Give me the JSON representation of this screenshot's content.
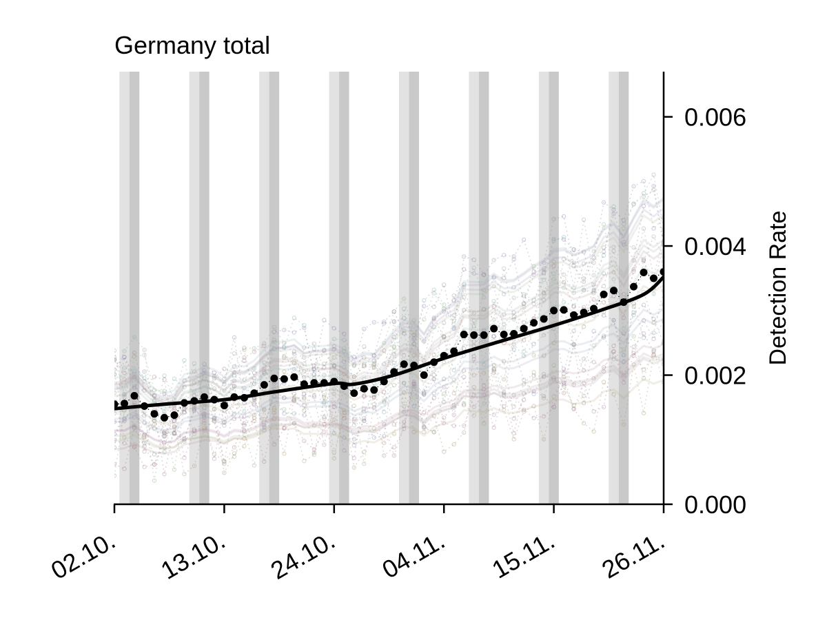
{
  "chart_data": {
    "type": "line",
    "title": "Germany total",
    "xlabel": "",
    "ylabel": "Detection Rate",
    "x_tick_labels": [
      "02.10.",
      "13.10.",
      "24.10.",
      "04.11.",
      "15.11.",
      "26.11."
    ],
    "y_tick_labels": [
      "0.000",
      "0.002",
      "0.004",
      "0.006"
    ],
    "y_ticks": [
      0,
      0.002,
      0.004,
      0.006
    ],
    "xlim": [
      "02.10.",
      "26.11."
    ],
    "ylim": [
      0,
      0.0067
    ],
    "y_axis_position": "right",
    "weekend_bands_start_dates": [
      "03.10.",
      "10.10.",
      "17.10.",
      "24.10.",
      "31.10.",
      "07.11.",
      "14.11.",
      "21.11."
    ],
    "series": [
      {
        "role": "daily-points",
        "x": [
          "02.10.",
          "03.10.",
          "04.10.",
          "05.10.",
          "06.10.",
          "07.10.",
          "08.10.",
          "09.10.",
          "10.10.",
          "11.10.",
          "12.10.",
          "13.10.",
          "14.10.",
          "15.10.",
          "16.10.",
          "17.10.",
          "18.10.",
          "19.10.",
          "20.10.",
          "21.10.",
          "22.10.",
          "23.10.",
          "24.10.",
          "25.10.",
          "26.10.",
          "27.10.",
          "28.10.",
          "29.10.",
          "30.10.",
          "31.10.",
          "01.11.",
          "02.11.",
          "03.11.",
          "04.11.",
          "05.11.",
          "06.11.",
          "07.11.",
          "08.11.",
          "09.11.",
          "10.11.",
          "11.11.",
          "12.11.",
          "13.11.",
          "14.11.",
          "15.11.",
          "16.11.",
          "17.11.",
          "18.11.",
          "19.11.",
          "20.11.",
          "21.11.",
          "22.11.",
          "23.11.",
          "24.11.",
          "25.11.",
          "26.11."
        ],
        "values": [
          0.00155,
          0.00156,
          0.00168,
          0.00152,
          0.0014,
          0.00134,
          0.00138,
          0.00157,
          0.0016,
          0.00166,
          0.00162,
          0.00153,
          0.00166,
          0.00165,
          0.00172,
          0.00185,
          0.00195,
          0.00194,
          0.00197,
          0.00186,
          0.00188,
          0.00188,
          0.0019,
          0.00183,
          0.00172,
          0.00179,
          0.00177,
          0.0019,
          0.00205,
          0.00217,
          0.00215,
          0.002,
          0.0022,
          0.0023,
          0.00237,
          0.00263,
          0.00262,
          0.00262,
          0.00272,
          0.00263,
          0.00264,
          0.00272,
          0.00281,
          0.00287,
          0.003,
          0.00301,
          0.00293,
          0.00297,
          0.00303,
          0.00325,
          0.00331,
          0.00313,
          0.00337,
          0.00359,
          0.0035,
          0.0036
        ]
      },
      {
        "role": "smoothed-trend",
        "x": [
          "02.10.",
          "07.10.",
          "13.10.",
          "18.10.",
          "24.10.",
          "26.10.",
          "30.10.",
          "04.11.",
          "10.11.",
          "15.11.",
          "20.11.",
          "24.11.",
          "26.11."
        ],
        "values": [
          0.00148,
          0.00155,
          0.00162,
          0.00174,
          0.00187,
          0.00186,
          0.002,
          0.00226,
          0.00254,
          0.00277,
          0.00302,
          0.00325,
          0.00352
        ]
      }
    ],
    "background_series_count": 16,
    "background_colors": [
      "#b08a8a",
      "#8a9bb0",
      "#9bb08a",
      "#b09a7a",
      "#9a8ab0",
      "#8ab0aa",
      "#b08aa6",
      "#a0a0a0"
    ],
    "grid": false,
    "legend": "none"
  }
}
